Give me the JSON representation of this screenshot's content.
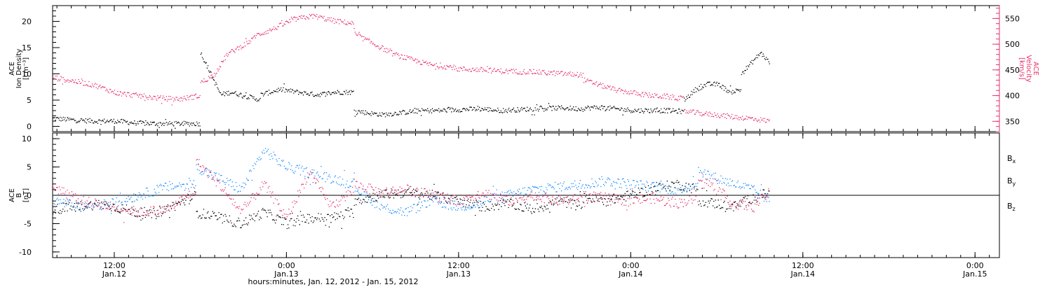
{
  "chart_data": [
    {
      "type": "scatter",
      "panel": "top",
      "left_axis": {
        "label_lines": [
          "ACE",
          "Ion Density",
          "[cm⁻³]"
        ],
        "ylim": [
          -1,
          23
        ],
        "ticks": [
          0,
          5,
          10,
          15,
          20
        ],
        "color": "#000000"
      },
      "right_axis": {
        "label_lines": [
          "ACE",
          "Velocity",
          "[km/s]"
        ],
        "ylim": [
          330,
          575
        ],
        "ticks": [
          350,
          400,
          450,
          500,
          550
        ],
        "color": "#e8306a"
      },
      "series": [
        {
          "name": "Ion Density",
          "axis": "left",
          "color": "#000000",
          "points_hours": [
            0,
            3,
            6,
            9,
            12,
            15,
            18,
            21
          ],
          "values": [
            1.5,
            1.0,
            0.9,
            0.5,
            0.5,
            0.5,
            0.5,
            15.0
          ],
          "segments": [
            {
              "start": 0,
              "end": 20.6,
              "levels": [
                1.5,
                1.2,
                1.0,
                1.0,
                0.6,
                0.5,
                0.5,
                0.5
              ]
            },
            {
              "start": 20.6,
              "end": 29,
              "levels": [
                14,
                10,
                6,
                6.5,
                6,
                5.5,
                5
              ]
            },
            {
              "start": 29,
              "end": 42,
              "levels": [
                6,
                7,
                6.5,
                6,
                6.5,
                6.5
              ]
            },
            {
              "start": 42,
              "end": 54,
              "levels": [
                3,
                2.5,
                2.2,
                2.5,
                2.8,
                3.0,
                3.0
              ]
            },
            {
              "start": 54,
              "end": 74,
              "levels": [
                3.0,
                3.2,
                3.3,
                3.0,
                3.2,
                3.4,
                3.5,
                3.3
              ]
            },
            {
              "start": 74,
              "end": 88,
              "levels": [
                3.5,
                3.6,
                3.3,
                3.0,
                3.0,
                3.0,
                2.8
              ]
            },
            {
              "start": 88,
              "end": 96,
              "levels": [
                5,
                7,
                8,
                8,
                6.5,
                7
              ]
            },
            {
              "start": 96,
              "end": 100,
              "levels": [
                10,
                12,
                14,
                12
              ]
            }
          ]
        },
        {
          "name": "Velocity",
          "axis": "right",
          "color": "#e8306a",
          "segments": [
            {
              "start": 0,
              "end": 20.6,
              "levels": [
                435,
                428,
                420,
                405,
                400,
                395,
                393,
                400
              ]
            },
            {
              "start": 20.6,
              "end": 28,
              "levels": [
                425,
                440,
                480,
                495,
                510
              ]
            },
            {
              "start": 28,
              "end": 42,
              "levels": [
                515,
                530,
                548,
                555,
                545,
                540
              ]
            },
            {
              "start": 42,
              "end": 56,
              "levels": [
                520,
                500,
                480,
                468,
                458,
                455
              ]
            },
            {
              "start": 56,
              "end": 74,
              "levels": [
                452,
                450,
                447,
                446,
                443,
                440
              ]
            },
            {
              "start": 74,
              "end": 88,
              "levels": [
                430,
                420,
                410,
                405,
                400,
                398,
                393
              ]
            },
            {
              "start": 88,
              "end": 100,
              "levels": [
                370,
                365,
                362,
                358,
                355,
                350
              ]
            }
          ]
        }
      ]
    },
    {
      "type": "scatter",
      "panel": "bottom",
      "left_axis": {
        "label_lines": [
          "ACE",
          "B",
          "[nT]"
        ],
        "ylim": [
          -11,
          11
        ],
        "ticks": [
          -10,
          -5,
          0,
          5,
          10
        ],
        "color": "#000000"
      },
      "legend": [
        {
          "name": "Bx",
          "base": "B",
          "sub": "x",
          "color": "#000000"
        },
        {
          "name": "By",
          "base": "B",
          "sub": "y",
          "color": "#1a8cff"
        },
        {
          "name": "Bz",
          "base": "B",
          "sub": "z",
          "color": "#e8306a"
        }
      ],
      "series": [
        {
          "name": "Bx",
          "color": "#000000",
          "segments": [
            {
              "start": 0,
              "end": 20,
              "levels": [
                -2.5,
                -2.0,
                -1.5,
                -2.5,
                -3.5,
                -2.0,
                0.0
              ]
            },
            {
              "start": 20,
              "end": 42,
              "levels": [
                -3,
                -4,
                -5,
                -3,
                -5,
                -4,
                -4,
                -3
              ]
            },
            {
              "start": 42,
              "end": 60,
              "levels": [
                -1,
                0.0,
                0.5,
                0.0,
                -1.0,
                -2.0
              ]
            },
            {
              "start": 60,
              "end": 74,
              "levels": [
                -2,
                -1.5,
                -2.5,
                -1.0,
                -2.0
              ]
            },
            {
              "start": 74,
              "end": 90,
              "levels": [
                -0.5,
                -1.0,
                0.0,
                1.0,
                2.0,
                1.0
              ]
            },
            {
              "start": 90,
              "end": 100,
              "levels": [
                -1.0,
                -1.5,
                -2.0,
                -0.5,
                0.5
              ]
            }
          ]
        },
        {
          "name": "By",
          "color": "#1a8cff",
          "segments": [
            {
              "start": 0,
              "end": 20,
              "levels": [
                -1.0,
                -2.0,
                -1.5,
                0.0,
                1.5,
                2.0
              ]
            },
            {
              "start": 20,
              "end": 42,
              "levels": [
                5,
                3,
                1,
                8,
                5,
                4,
                3,
                2
              ]
            },
            {
              "start": 42,
              "end": 60,
              "levels": [
                1.5,
                -2.0,
                -3.0,
                -1.0,
                -2.0,
                -1.5
              ]
            },
            {
              "start": 60,
              "end": 74,
              "levels": [
                -1.0,
                0.0,
                1.0,
                1.5,
                2.0
              ]
            },
            {
              "start": 74,
              "end": 90,
              "levels": [
                2.0,
                2.5,
                2.0,
                1.5,
                1.0,
                2.0
              ]
            },
            {
              "start": 90,
              "end": 100,
              "levels": [
                4.5,
                3.0,
                2.0,
                1.0,
                -1.0
              ]
            }
          ]
        },
        {
          "name": "Bz",
          "color": "#e8306a",
          "segments": [
            {
              "start": 0,
              "end": 20,
              "levels": [
                1.5,
                -1.0,
                -2.0,
                -3.0,
                -2.5,
                1.0
              ]
            },
            {
              "start": 20,
              "end": 42,
              "levels": [
                6,
                2,
                -3,
                2,
                -4,
                4,
                -2,
                1
              ]
            },
            {
              "start": 42,
              "end": 60,
              "levels": [
                2.0,
                0.5,
                1.0,
                0.0,
                -1.0,
                0.5
              ]
            },
            {
              "start": 60,
              "end": 74,
              "levels": [
                0.5,
                -1.0,
                0.0,
                -1.0,
                -0.5
              ]
            },
            {
              "start": 74,
              "end": 90,
              "levels": [
                0.0,
                -0.5,
                -1.0,
                -0.5,
                -1.5,
                -0.5
              ]
            },
            {
              "start": 90,
              "end": 100,
              "levels": [
                3.5,
                1.0,
                -1.5,
                -2.0,
                0.5
              ]
            }
          ]
        }
      ]
    }
  ],
  "x_axis": {
    "xlim_hours": [
      0,
      108
    ],
    "ticks": [
      {
        "hour": 8.5,
        "time": "12:00",
        "date": "Jan.12"
      },
      {
        "hour": 32.5,
        "time": "0:00",
        "date": "Jan.13"
      },
      {
        "hour": 56.5,
        "time": "12:00",
        "date": "Jan.13"
      },
      {
        "hour": 80.5,
        "time": "0:00",
        "date": "Jan.14"
      },
      {
        "hour": 104.5,
        "time": "12:00",
        "date": "Jan.14"
      },
      {
        "hour": 128.5,
        "time": "0:00",
        "date": "Jan.15"
      }
    ],
    "label": "hours:minutes, Jan. 12, 2012 - Jan. 15, 2012"
  }
}
